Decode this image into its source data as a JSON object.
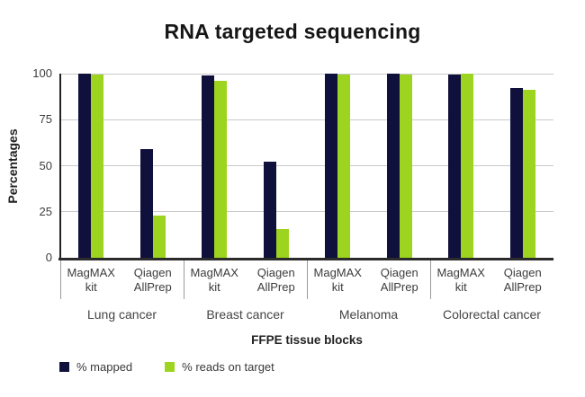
{
  "chart_data": {
    "type": "bar",
    "title": "RNA targeted sequencing",
    "xlabel": "FFPE tissue blocks",
    "ylabel": "Percentages",
    "ylim": [
      0,
      100
    ],
    "yticks": [
      0,
      25,
      50,
      75,
      100
    ],
    "grid": true,
    "legend_position": "bottom-left",
    "groups": [
      {
        "label": "Lung cancer",
        "clusters": [
          {
            "label": "MagMAX kit",
            "mapped": 100,
            "reads_on_target": 99.5
          },
          {
            "label": "Qiagen AllPrep",
            "mapped": 59,
            "reads_on_target": 23
          }
        ]
      },
      {
        "label": "Breast cancer",
        "clusters": [
          {
            "label": "MagMAX kit",
            "mapped": 99,
            "reads_on_target": 96
          },
          {
            "label": "Qiagen AllPrep",
            "mapped": 52,
            "reads_on_target": 15.5
          }
        ]
      },
      {
        "label": "Melanoma",
        "clusters": [
          {
            "label": "MagMAX kit",
            "mapped": 100,
            "reads_on_target": 99.5
          },
          {
            "label": "Qiagen AllPrep",
            "mapped": 100,
            "reads_on_target": 99.5
          }
        ]
      },
      {
        "label": "Colorectal cancer",
        "clusters": [
          {
            "label": "MagMAX kit",
            "mapped": 99.5,
            "reads_on_target": 100
          },
          {
            "label": "Qiagen AllPrep",
            "mapped": 92,
            "reads_on_target": 91
          }
        ]
      }
    ],
    "series": [
      {
        "name": "% mapped",
        "key": "mapped",
        "color": "#10103c"
      },
      {
        "name": "% reads on target",
        "key": "reads_on_target",
        "color": "#9dd41f"
      }
    ],
    "colors": {
      "axis": "#2b2b2b",
      "gridline": "#c9c9c9",
      "separator": "#9a9a9a"
    }
  }
}
